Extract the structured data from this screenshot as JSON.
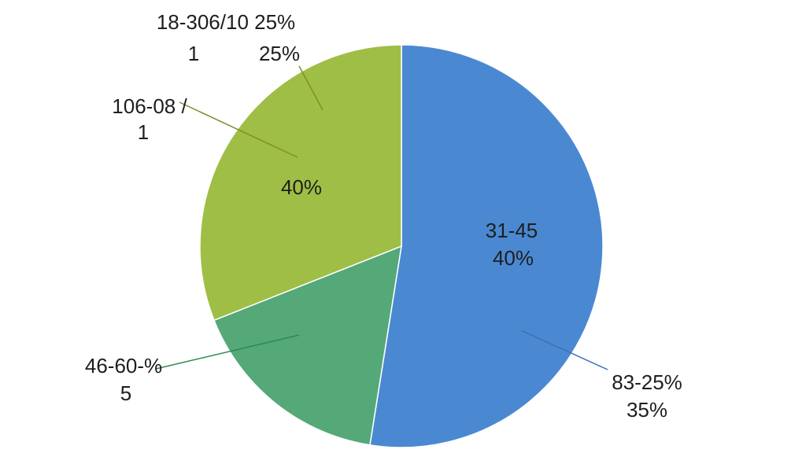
{
  "chart_data": {
    "type": "pie",
    "values": [
      52.5,
      16.5,
      31
    ],
    "colors": [
      "#4a89d2",
      "#55a878",
      "#9fbe45"
    ],
    "annotations": [
      "18-306/10 25%",
      "1",
      "25%",
      "106-08 /",
      "1",
      "40%",
      "31-45",
      "40%",
      "46-60-%",
      "5",
      "83-25%",
      "35%"
    ]
  }
}
